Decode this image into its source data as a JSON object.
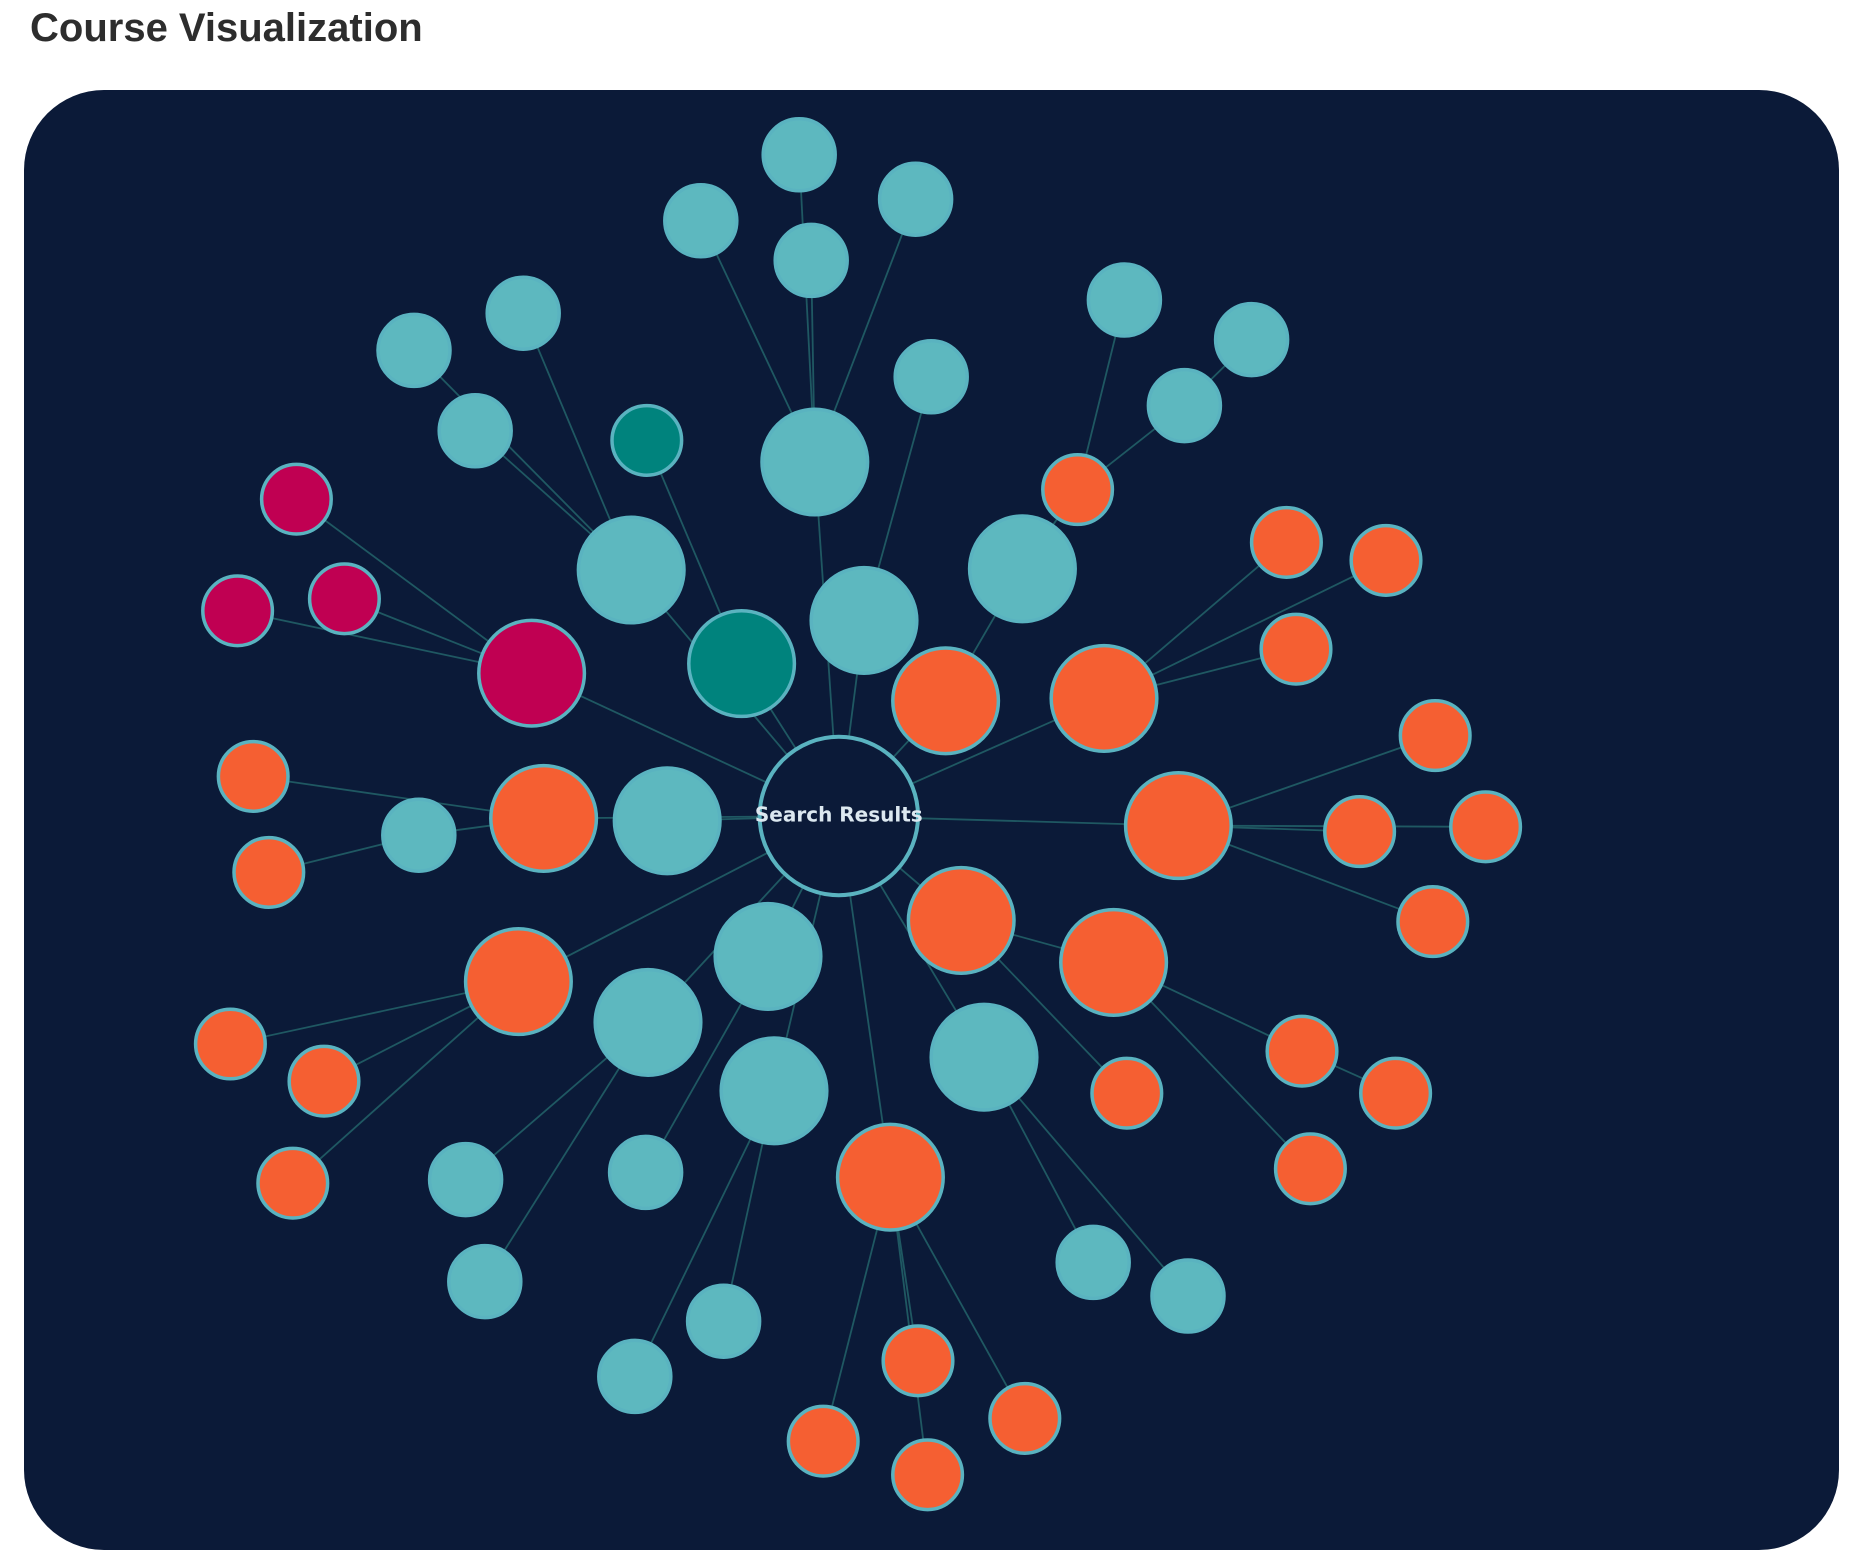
{
  "page": {
    "title": "Course Visualization"
  },
  "graph": {
    "center_label": "Search Results",
    "colors": {
      "background": "#0b1a38",
      "link": "#1f5862",
      "node_stroke": "#5ab3c0",
      "teal": "#5db8bf",
      "dark_teal": "#00837d",
      "orange": "#f55f32",
      "magenta": "#c00052",
      "center_fill": "#0b1a38",
      "center_text": "#dce8f0"
    }
  }
}
